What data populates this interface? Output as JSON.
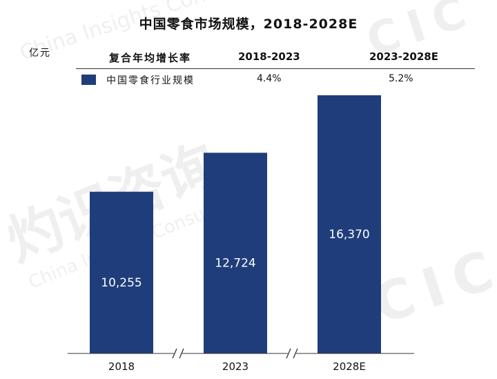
{
  "chart_data": {
    "type": "bar",
    "title": "中国零食市场规模，2018-2028E",
    "unit": "亿元",
    "categories": [
      "2018",
      "2023",
      "2028E"
    ],
    "series": [
      {
        "name": "中国零食行业规模",
        "values": [
          10255,
          12724,
          16370
        ],
        "color": "#1f3d7a"
      }
    ],
    "data_labels": [
      "10,255",
      "12,724",
      "16,370"
    ],
    "ylim": [
      0,
      17000
    ],
    "grid": false,
    "axis_breaks": true,
    "cagr_table": {
      "header_label": "复合年均增长率",
      "periods": [
        "2018-2023",
        "2023-2028E"
      ],
      "values": [
        "4.4%",
        "5.2%"
      ]
    }
  },
  "watermark": {
    "cn": "灼识咨询",
    "en": "China Insights Consultancy",
    "logo": "CIC"
  }
}
